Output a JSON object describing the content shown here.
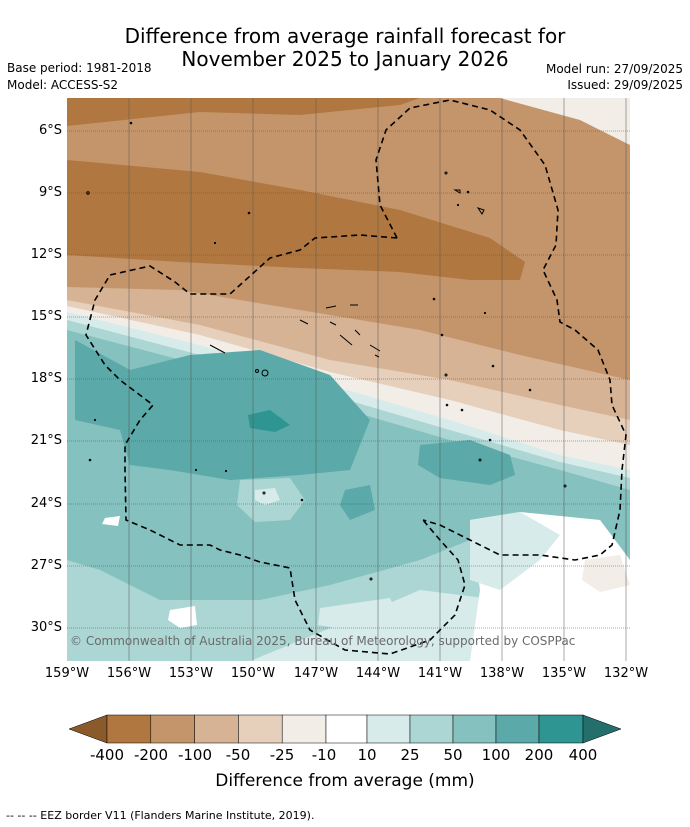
{
  "title": {
    "line1": "Difference from average rainfall forecast for",
    "line2": "November 2025 to January 2026"
  },
  "meta": {
    "base_period": "Base period: 1981-2018",
    "model": "Model: ACCESS-S2",
    "model_run": "Model run: 27/09/2025",
    "issued": "Issued: 29/09/2025"
  },
  "map": {
    "lat_labels": [
      "6°S",
      "9°S",
      "12°S",
      "15°S",
      "18°S",
      "21°S",
      "24°S",
      "27°S",
      "30°S"
    ],
    "lon_labels": [
      "159°W",
      "156°W",
      "153°W",
      "150°W",
      "147°W",
      "144°W",
      "141°W",
      "138°W",
      "135°W",
      "132°W"
    ],
    "copyright": "© Commonwealth of Australia 2025, Bureau of Meteorology, supported by COSPPac"
  },
  "colorbar": {
    "labels": [
      "-400",
      "-200",
      "-100",
      "-50",
      "-25",
      "-10",
      "10",
      "25",
      "50",
      "100",
      "200",
      "400"
    ],
    "colors": [
      "#8a5a2a",
      "#b07840",
      "#c4956a",
      "#d5b394",
      "#e6d0bc",
      "#f2ede6",
      "#ffffff",
      "#d6ebea",
      "#acd6d4",
      "#84c1bf",
      "#5ba9a8",
      "#2f9592",
      "#246f6c"
    ],
    "title": "Difference from average (mm)"
  },
  "footer": "--  --  -- EEZ border V11 (Flanders Marine Institute, 2019)."
}
